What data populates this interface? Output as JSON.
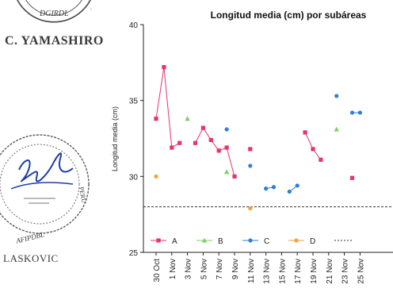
{
  "stamps": {
    "top_stamp_text": "DGIRDL",
    "top_signature_name": "C. YAMASHIRO",
    "bottom_stamp_text": "AFIPDBL",
    "bottom_stamp_side_text": "PERU",
    "bottom_signature_name": "LASKOVIC"
  },
  "chart_data": {
    "type": "line",
    "title": "Longitud media (cm) por subáreas",
    "xlabel": "",
    "ylabel": "Longitud media (cm)",
    "ylim": [
      25,
      40
    ],
    "yticks": [
      25,
      30,
      35,
      40
    ],
    "grid": false,
    "legend_position": "bottom",
    "categories": [
      "30 Oct",
      "1 Nov",
      "3 Nov",
      "5 Nov",
      "7 Nov",
      "9 Nov",
      "11 Nov",
      "13 Nov",
      "15 Nov",
      "17 Nov",
      "19 Nov",
      "21 Nov",
      "23 Nov",
      "25 Nov"
    ],
    "reference_line": {
      "value": 28.0,
      "style": "dashed",
      "color": "#333333"
    },
    "series": [
      {
        "name": "A",
        "color": "#e8336b",
        "marker": "square",
        "points": [
          {
            "x": 0,
            "y": 33.8
          },
          {
            "x": 1,
            "y": 37.2
          },
          {
            "x": 2,
            "y": 31.9
          },
          {
            "x": 3,
            "y": 32.2
          },
          {
            "x": 5,
            "y": 32.2
          },
          {
            "x": 6,
            "y": 33.2
          },
          {
            "x": 7,
            "y": 32.4
          },
          {
            "x": 8,
            "y": 31.7
          },
          {
            "x": 9,
            "y": 31.9
          },
          {
            "x": 10,
            "y": 30.0
          },
          {
            "x": 12,
            "y": 31.8
          },
          {
            "x": 19,
            "y": 32.9
          },
          {
            "x": 20,
            "y": 31.8
          },
          {
            "x": 21,
            "y": 31.1
          },
          {
            "x": 25,
            "y": 29.9
          }
        ]
      },
      {
        "name": "B",
        "color": "#7ccf6a",
        "marker": "triangle",
        "points": [
          {
            "x": 4,
            "y": 33.8
          },
          {
            "x": 9,
            "y": 30.3
          },
          {
            "x": 23,
            "y": 33.1
          }
        ]
      },
      {
        "name": "C",
        "color": "#2f7fd6",
        "marker": "circle",
        "points": [
          {
            "x": 9,
            "y": 33.1
          },
          {
            "x": 12,
            "y": 30.7
          },
          {
            "x": 14,
            "y": 29.2
          },
          {
            "x": 15,
            "y": 29.3
          },
          {
            "x": 17,
            "y": 29.0
          },
          {
            "x": 18,
            "y": 29.4
          },
          {
            "x": 23,
            "y": 35.3
          },
          {
            "x": 25,
            "y": 34.2
          },
          {
            "x": 26,
            "y": 34.2
          }
        ]
      },
      {
        "name": "D",
        "color": "#f2a23a",
        "marker": "circle",
        "points": [
          {
            "x": 0,
            "y": 30.0
          },
          {
            "x": 12,
            "y": 27.9
          }
        ]
      }
    ],
    "segments": {
      "A": [
        [
          0,
          1,
          2,
          3
        ],
        [
          4,
          5,
          6,
          7,
          8,
          9
        ],
        [
          10
        ],
        [
          11,
          12,
          13
        ],
        [
          14
        ]
      ],
      "B": [
        [
          0
        ],
        [
          1
        ],
        [
          2
        ]
      ],
      "C": [
        [
          0
        ],
        [
          1
        ],
        [
          2,
          3
        ],
        [
          4,
          5
        ],
        [
          6
        ],
        [
          7,
          8
        ]
      ],
      "D": [
        [
          0
        ],
        [
          1
        ]
      ]
    }
  }
}
